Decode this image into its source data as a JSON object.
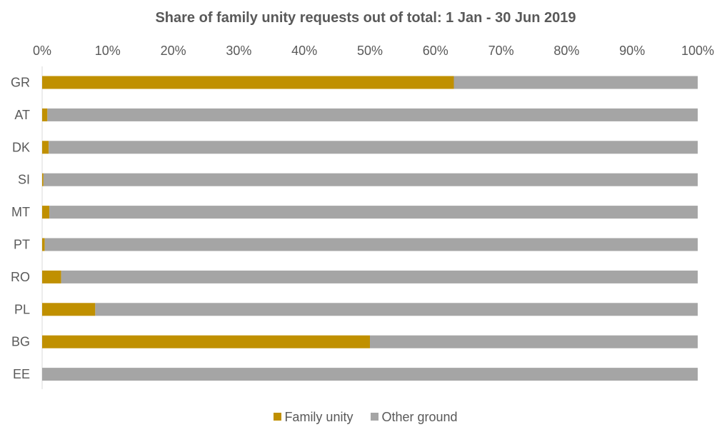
{
  "chart_data": {
    "type": "bar",
    "orientation": "horizontal",
    "stacked": "percent",
    "title": "Share of family unity requests out of total: 1 Jan - 30 Jun 2019",
    "categories": [
      "GR",
      "AT",
      "DK",
      "SI",
      "MT",
      "PT",
      "RO",
      "PL",
      "BG",
      "EE"
    ],
    "series": [
      {
        "name": "Family unity",
        "color": "#C09000",
        "values": [
          62.8,
          0.8,
          1.0,
          0.2,
          1.1,
          0.4,
          2.9,
          8.1,
          50.0,
          0.0
        ]
      },
      {
        "name": "Other ground",
        "color": "#A5A5A5",
        "values": [
          37.2,
          99.2,
          99.0,
          99.8,
          98.9,
          99.6,
          97.1,
          91.9,
          50.0,
          100.0
        ]
      }
    ],
    "x_ticks": [
      "0%",
      "10%",
      "20%",
      "30%",
      "40%",
      "50%",
      "60%",
      "70%",
      "80%",
      "90%",
      "100%"
    ],
    "xlim": [
      0,
      100
    ],
    "axis_position": "top",
    "grid": false,
    "legend_position": "bottom"
  }
}
